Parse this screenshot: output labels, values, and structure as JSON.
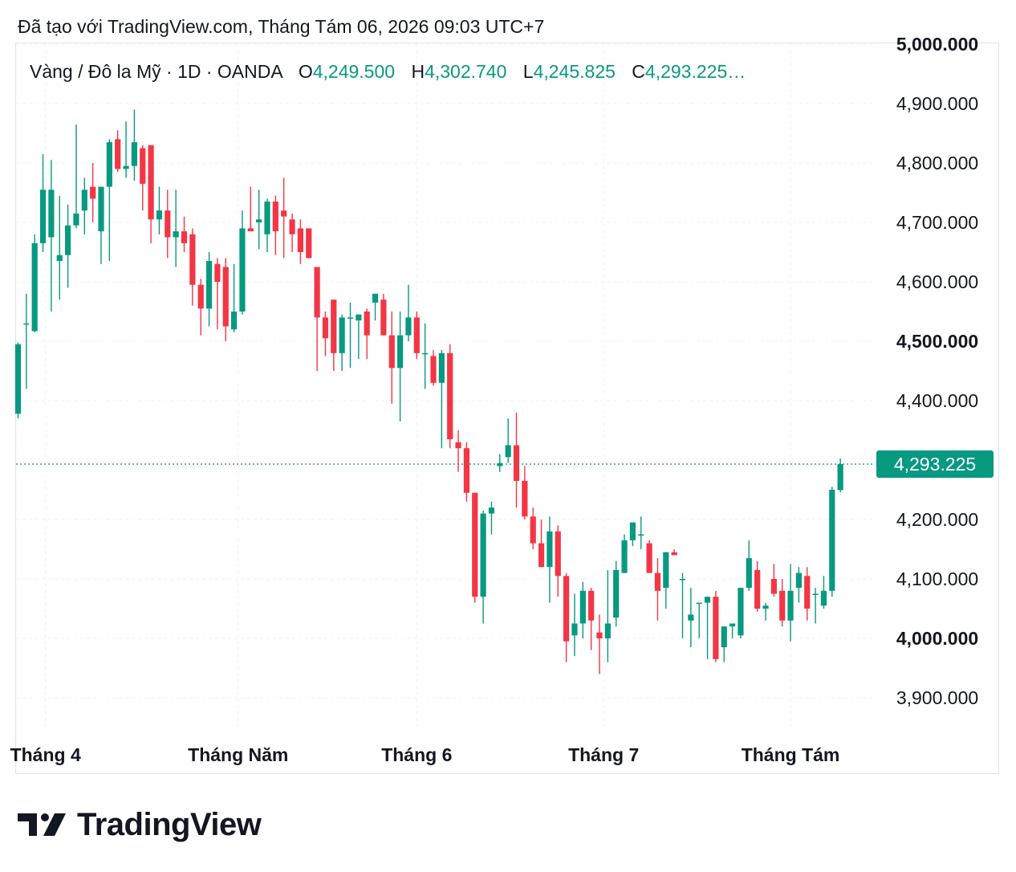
{
  "caption": "Đã tạo với TradingView.com, Tháng Tám 06, 2026 09:03 UTC+7",
  "legend": {
    "symbol": "Vàng / Đô la Mỹ · 1D · OANDA",
    "o_label": "O",
    "o_value": "4,249.500",
    "h_label": "H",
    "h_value": "4,302.740",
    "l_label": "L",
    "l_value": "4,245.825",
    "c_label": "C",
    "c_value": "4,293.225…"
  },
  "brand": "TradingView",
  "colors": {
    "up": "#089981",
    "down": "#f23645",
    "grid": "#f0f3fa",
    "axis_text": "#131722"
  },
  "chart_data": {
    "type": "candlestick",
    "title": "Vàng / Đô la Mỹ · 1D · OANDA",
    "ylim": [
      3860,
      5010
    ],
    "y_ticks": [
      {
        "value": 5000,
        "label": "5,000.000",
        "bold": true
      },
      {
        "value": 4900,
        "label": "4,900.000",
        "bold": false
      },
      {
        "value": 4800,
        "label": "4,800.000",
        "bold": false
      },
      {
        "value": 4700,
        "label": "4,700.000",
        "bold": false
      },
      {
        "value": 4600,
        "label": "4,600.000",
        "bold": false
      },
      {
        "value": 4500,
        "label": "4,500.000",
        "bold": true
      },
      {
        "value": 4400,
        "label": "4,400.000",
        "bold": false
      },
      {
        "value": 4200,
        "label": "4,200.000",
        "bold": false
      },
      {
        "value": 4100,
        "label": "4,100.000",
        "bold": false
      },
      {
        "value": 4000,
        "label": "4,000.000",
        "bold": true
      },
      {
        "value": 3900,
        "label": "3,900.000",
        "bold": false
      }
    ],
    "x_labels": [
      {
        "index": 3.3,
        "label": "Tháng 4"
      },
      {
        "index": 26.5,
        "label": "Tháng Năm"
      },
      {
        "index": 48,
        "label": "Tháng 6"
      },
      {
        "index": 70.5,
        "label": "Tháng 7"
      },
      {
        "index": 93,
        "label": "Tháng Tám"
      }
    ],
    "last_price": 4293.225,
    "last_price_label": "4,293.225",
    "candles": [
      [
        4378,
        4498,
        4370,
        4495
      ],
      [
        4530,
        4580,
        4420,
        4530
      ],
      [
        4517,
        4680,
        4515,
        4665
      ],
      [
        4665,
        4815,
        4650,
        4755
      ],
      [
        4675,
        4805,
        4550,
        4755
      ],
      [
        4635,
        4745,
        4570,
        4645
      ],
      [
        4645,
        4730,
        4590,
        4695
      ],
      [
        4695,
        4865,
        4690,
        4715
      ],
      [
        4720,
        4775,
        4680,
        4755
      ],
      [
        4760,
        4800,
        4700,
        4740
      ],
      [
        4685,
        4760,
        4630,
        4760
      ],
      [
        4760,
        4840,
        4635,
        4835
      ],
      [
        4840,
        4855,
        4785,
        4790
      ],
      [
        4790,
        4870,
        4775,
        4795
      ],
      [
        4795,
        4890,
        4770,
        4835
      ],
      [
        4825,
        4830,
        4720,
        4765
      ],
      [
        4830,
        4830,
        4665,
        4705
      ],
      [
        4705,
        4760,
        4680,
        4720
      ],
      [
        4720,
        4755,
        4640,
        4675
      ],
      [
        4675,
        4755,
        4625,
        4685
      ],
      [
        4685,
        4710,
        4650,
        4665
      ],
      [
        4680,
        4690,
        4560,
        4595
      ],
      [
        4595,
        4605,
        4510,
        4555
      ],
      [
        4555,
        4650,
        4525,
        4635
      ],
      [
        4630,
        4640,
        4520,
        4600
      ],
      [
        4625,
        4640,
        4500,
        4525
      ],
      [
        4520,
        4630,
        4515,
        4550
      ],
      [
        4550,
        4720,
        4545,
        4690
      ],
      [
        4690,
        4760,
        4685,
        4685
      ],
      [
        4700,
        4755,
        4655,
        4705
      ],
      [
        4680,
        4740,
        4650,
        4735
      ],
      [
        4735,
        4745,
        4645,
        4685
      ],
      [
        4720,
        4775,
        4640,
        4710
      ],
      [
        4705,
        4715,
        4650,
        4680
      ],
      [
        4690,
        4705,
        4630,
        4650
      ],
      [
        4690,
        4685,
        4640,
        4640
      ],
      [
        4625,
        4625,
        4450,
        4540
      ],
      [
        4540,
        4550,
        4475,
        4505
      ],
      [
        4570,
        4570,
        4450,
        4480
      ],
      [
        4480,
        4545,
        4450,
        4540
      ],
      [
        4540,
        4565,
        4455,
        4540
      ],
      [
        4535,
        4545,
        4470,
        4545
      ],
      [
        4550,
        4555,
        4470,
        4510
      ],
      [
        4565,
        4580,
        4535,
        4580
      ],
      [
        4570,
        4580,
        4510,
        4510
      ],
      [
        4510,
        4550,
        4395,
        4455
      ],
      [
        4455,
        4550,
        4365,
        4510
      ],
      [
        4510,
        4595,
        4500,
        4540
      ],
      [
        4540,
        4550,
        4470,
        4480
      ],
      [
        4480,
        4530,
        4420,
        4480
      ],
      [
        4475,
        4485,
        4425,
        4430
      ],
      [
        4430,
        4485,
        4320,
        4480
      ],
      [
        4480,
        4495,
        4320,
        4335
      ],
      [
        4330,
        4350,
        4280,
        4320
      ],
      [
        4320,
        4330,
        4230,
        4245
      ],
      [
        4245,
        4245,
        4060,
        4070
      ],
      [
        4070,
        4215,
        4025,
        4210
      ],
      [
        4210,
        4230,
        4175,
        4220
      ],
      [
        4290,
        4310,
        4280,
        4295
      ],
      [
        4305,
        4370,
        4295,
        4325
      ],
      [
        4325,
        4380,
        4220,
        4265
      ],
      [
        4265,
        4290,
        4200,
        4205
      ],
      [
        4205,
        4220,
        4150,
        4160
      ],
      [
        4160,
        4200,
        4120,
        4120
      ],
      [
        4120,
        4205,
        4060,
        4180
      ],
      [
        4180,
        4190,
        4070,
        4105
      ],
      [
        4105,
        4110,
        3960,
        3995
      ],
      [
        4005,
        4075,
        3970,
        4025
      ],
      [
        4025,
        4095,
        4000,
        4080
      ],
      [
        4080,
        4085,
        3980,
        4030
      ],
      [
        4010,
        4040,
        3940,
        4000
      ],
      [
        4000,
        4115,
        3960,
        4025
      ],
      [
        4035,
        4130,
        4020,
        4115
      ],
      [
        4110,
        4175,
        4110,
        4165
      ],
      [
        4165,
        4195,
        4155,
        4195
      ],
      [
        4175,
        4205,
        4150,
        4175
      ],
      [
        4160,
        4165,
        4115,
        4110
      ],
      [
        4110,
        4135,
        4030,
        4080
      ],
      [
        4085,
        4145,
        4050,
        4145
      ],
      [
        4145,
        4150,
        4140,
        4140
      ],
      [
        4100,
        4110,
        4000,
        4100
      ],
      [
        4030,
        4085,
        3985,
        4040
      ],
      [
        4060,
        4060,
        4000,
        4060
      ],
      [
        4060,
        4070,
        3965,
        4070
      ],
      [
        4070,
        4080,
        3960,
        3965
      ],
      [
        3985,
        4020,
        3960,
        4020
      ],
      [
        4020,
        4025,
        4000,
        4025
      ],
      [
        4005,
        4085,
        4000,
        4085
      ],
      [
        4085,
        4165,
        4080,
        4135
      ],
      [
        4115,
        4130,
        4045,
        4050
      ],
      [
        4050,
        4060,
        4030,
        4055
      ],
      [
        4100,
        4125,
        4070,
        4075
      ],
      [
        4080,
        4100,
        4020,
        4030
      ],
      [
        4030,
        4125,
        3995,
        4080
      ],
      [
        4085,
        4120,
        4060,
        4110
      ],
      [
        4105,
        4120,
        4030,
        4050
      ],
      [
        4075,
        4085,
        4025,
        4075
      ],
      [
        4055,
        4105,
        4050,
        4080
      ],
      [
        4080,
        4255,
        4070,
        4250
      ],
      [
        4249.5,
        4302.74,
        4245.825,
        4293.225
      ]
    ]
  }
}
